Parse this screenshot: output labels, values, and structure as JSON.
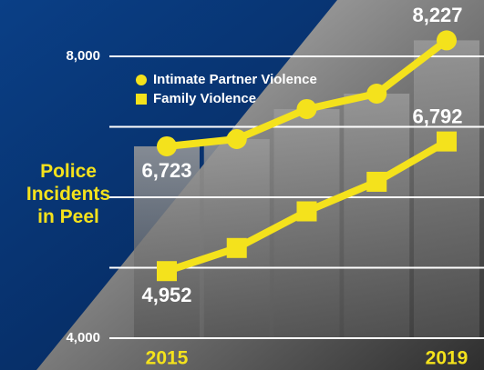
{
  "chart_data": {
    "type": "line",
    "y_label": "Police\nIncidents\nin Peel",
    "categories": [
      "2015",
      null,
      null,
      null,
      "2019"
    ],
    "series": [
      {
        "name": "Intimate Partner Violence",
        "color": "#f4e21c",
        "marker": "circle",
        "values": [
          6723,
          6826,
          7252,
          7471,
          8227
        ],
        "value_labels": [
          "6,723",
          null,
          null,
          null,
          "8,227"
        ]
      },
      {
        "name": "Family Violence",
        "color": "#f4e21c",
        "marker": "square",
        "values": [
          4952,
          5280,
          5800,
          6220,
          6792
        ],
        "value_labels": [
          "4,952",
          null,
          null,
          null,
          "6,792"
        ]
      }
    ],
    "ylim": [
      4000,
      8000
    ],
    "yticks": [
      {
        "value": 4000,
        "label": "4,000"
      },
      {
        "value": 8000,
        "label": "8,000"
      }
    ],
    "ygrid": [
      4000,
      5000,
      6000,
      7000,
      8000
    ],
    "grid": true
  }
}
